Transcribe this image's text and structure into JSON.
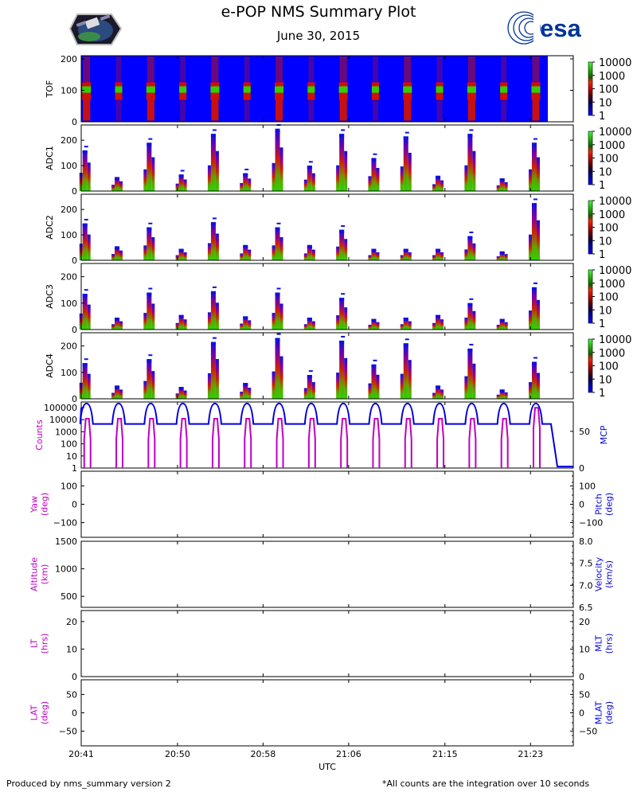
{
  "header": {
    "title": "e-POP NMS Summary Plot",
    "date": "June 30, 2015",
    "logo_left": "CASSIOPE satellite mission patch",
    "logo_right_text": "esa"
  },
  "footer": {
    "left": "Produced by nms_summary version 2",
    "right": "*All counts are the integration over 10 seconds"
  },
  "colors": {
    "magenta": "#c000c0",
    "blue": "#0000dd",
    "spectro_bg": "#0000ff",
    "esa_blue": "#003399"
  },
  "chart_data": {
    "type": "multi-panel time series",
    "xlabel": "UTC",
    "x_ticks": [
      "20:41",
      "20:50",
      "20:58",
      "21:06",
      "21:15",
      "21:23"
    ],
    "pass_times": [
      "20:41.5",
      "20:44.5",
      "20:47.5",
      "20:50.5",
      "20:53.5",
      "20:56.5",
      "20:59.5",
      "21:02.5",
      "21:05.5",
      "21:08.5",
      "21:11.5",
      "21:14.5",
      "21:17.5",
      "21:20.5",
      "21:23.5"
    ],
    "colorbar": {
      "ticks": [
        "10000",
        "1000",
        "100",
        "10",
        "1"
      ],
      "scale": "log"
    },
    "panels": [
      {
        "id": "tof",
        "type": "heatmap",
        "ylabel": "TOF",
        "ylim": [
          0,
          210
        ],
        "yticks": [
          "200",
          "100",
          "0"
        ],
        "bright_band_y": 100
      },
      {
        "id": "adc1",
        "type": "heatmap",
        "ylabel": "ADC1",
        "ylim": [
          0,
          260
        ],
        "yticks": [
          "200",
          "100",
          "0"
        ],
        "bar_heights": [
          160,
          55,
          190,
          65,
          225,
          70,
          245,
          100,
          225,
          130,
          215,
          60,
          225,
          50,
          190
        ]
      },
      {
        "id": "adc2",
        "type": "heatmap",
        "ylabel": "ADC2",
        "ylim": [
          0,
          260
        ],
        "yticks": [
          "200",
          "100",
          "0"
        ],
        "bar_heights": [
          145,
          55,
          130,
          45,
          150,
          60,
          130,
          60,
          120,
          45,
          45,
          45,
          95,
          35,
          225
        ]
      },
      {
        "id": "adc3",
        "type": "heatmap",
        "ylabel": "ADC3",
        "ylim": [
          0,
          250
        ],
        "yticks": [
          "200",
          "100",
          "0"
        ],
        "bar_heights": [
          135,
          45,
          140,
          55,
          145,
          50,
          140,
          45,
          120,
          40,
          45,
          55,
          100,
          40,
          160
        ]
      },
      {
        "id": "adc4",
        "type": "heatmap",
        "ylabel": "ADC4",
        "ylim": [
          0,
          250
        ],
        "yticks": [
          "200",
          "100",
          "0"
        ],
        "bar_heights": [
          135,
          50,
          150,
          45,
          215,
          60,
          230,
          90,
          220,
          130,
          210,
          50,
          190,
          35,
          140
        ]
      },
      {
        "id": "counts_mcp",
        "type": "line",
        "ylabel_left": "Counts",
        "ylabel_right": "MCP",
        "yticks_left": [
          "100000",
          "10000",
          "1000",
          "100",
          "10",
          "1"
        ],
        "yticks_right": [
          "50",
          "0"
        ],
        "series": [
          {
            "name": "Counts",
            "axis": "left",
            "scale": "log",
            "baseline": 1,
            "peak": 12000
          },
          {
            "name": "MCP",
            "axis": "right",
            "ylim": [
              0,
              90
            ],
            "low": 0,
            "baseline": 60,
            "peak": 88
          }
        ]
      },
      {
        "id": "yaw_pitch",
        "type": "line",
        "ylabel_left": "Yaw\n(deg)",
        "ylabel_right": "Pitch\n(deg)",
        "ylim_left": [
          -180,
          180
        ],
        "ylim_right": [
          -180,
          180
        ],
        "yticks_left": [
          "100",
          "0",
          "−100"
        ],
        "yticks_right": [
          "100",
          "0",
          "−100"
        ],
        "series": []
      },
      {
        "id": "alt_vel",
        "type": "line",
        "ylabel_left": "Altitude\n(km)",
        "ylabel_right": "Velocity\n(km/s)",
        "ylim_left": [
          300,
          1500
        ],
        "ylim_right": [
          6.5,
          8.0
        ],
        "yticks_left": [
          "1500",
          "1000",
          "500"
        ],
        "yticks_right": [
          "8.0",
          "7.5",
          "7.0",
          "6.5"
        ],
        "series": []
      },
      {
        "id": "lt_mlt",
        "type": "line",
        "ylabel_left": "LT\n(hrs)",
        "ylabel_right": "MLT\n(hrs)",
        "ylim_left": [
          0,
          24
        ],
        "ylim_right": [
          0,
          24
        ],
        "yticks_left": [
          "20",
          "10",
          "0"
        ],
        "yticks_right": [
          "20",
          "10",
          "0"
        ],
        "series": []
      },
      {
        "id": "lat_mlat",
        "type": "line",
        "ylabel_left": "LAT\n(deg)",
        "ylabel_right": "MLAT\n(deg)",
        "ylim_left": [
          -90,
          90
        ],
        "ylim_right": [
          -90,
          90
        ],
        "yticks_left": [
          "50",
          "0",
          "−50"
        ],
        "yticks_right": [
          "50",
          "0",
          "−50"
        ],
        "series": []
      }
    ]
  }
}
